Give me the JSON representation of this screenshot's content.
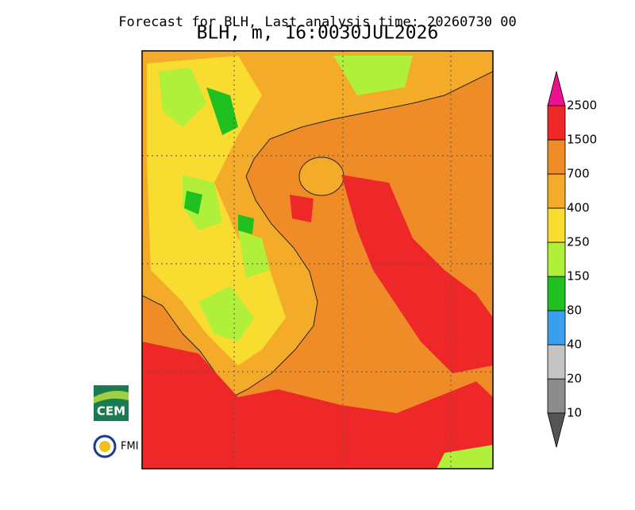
{
  "header": {
    "title": "Forecast for BLH, Last analysis time: 20260730 00",
    "subtitle": "BLH, m, 16:0030JUL2026"
  },
  "colorbar": {
    "levels": [
      10,
      20,
      40,
      80,
      150,
      250,
      400,
      700,
      1500,
      2500
    ],
    "colors": [
      "#555555",
      "#8c8c8c",
      "#c4c4c4",
      "#3aa0ee",
      "#20c020",
      "#b0f03a",
      "#f8dc30",
      "#f5ab2a",
      "#f08c28",
      "#ee2828",
      "#ee108c"
    ]
  },
  "logos": {
    "cem": "CEM",
    "fmi": "FMI"
  }
}
